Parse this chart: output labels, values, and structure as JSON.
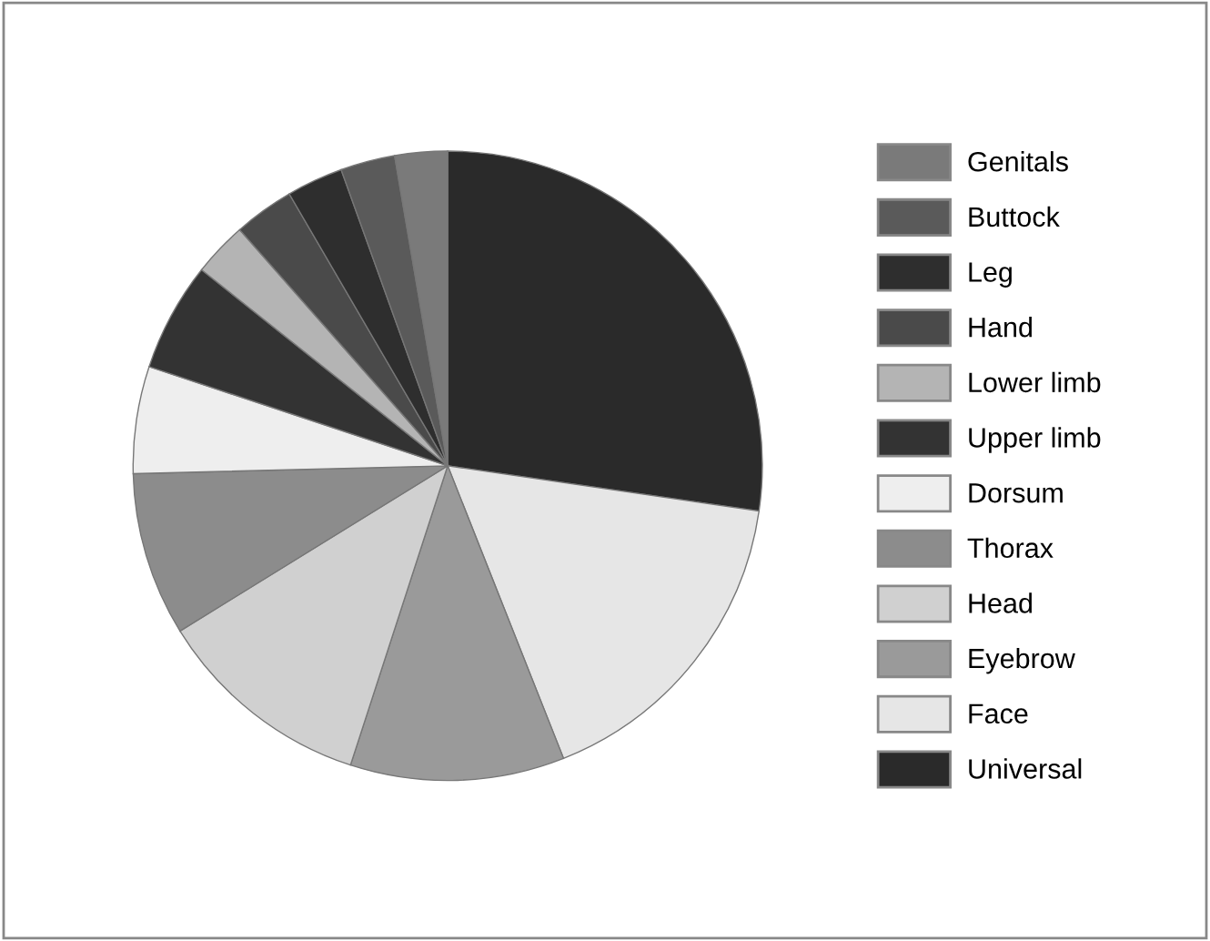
{
  "chart_data": {
    "type": "pie",
    "categories": [
      "Universal",
      "Face",
      "Eyebrow",
      "Head",
      "Thorax",
      "Dorsum",
      "Upper limb",
      "Lower limb",
      "Hand",
      "Leg",
      "Buttock",
      "Genitals"
    ],
    "values": [
      27.3,
      16.7,
      11.0,
      11.2,
      8.4,
      5.5,
      5.6,
      2.8,
      3.1,
      2.9,
      2.8,
      2.7
    ],
    "colors": [
      "#2a2a2a",
      "#e6e6e6",
      "#9a9a9a",
      "#d0d0d0",
      "#8c8c8c",
      "#eeeeee",
      "#333333",
      "#b4b4b4",
      "#4a4a4a",
      "#2e2e2e",
      "#5a5a5a",
      "#7a7a7a"
    ],
    "legend": "right"
  }
}
